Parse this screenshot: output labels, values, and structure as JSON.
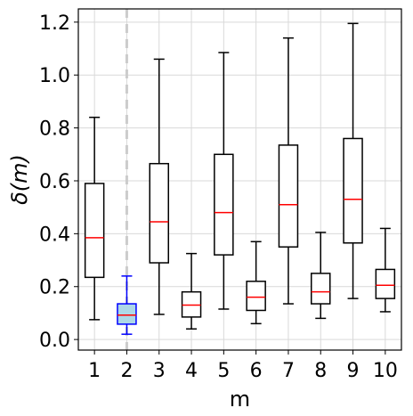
{
  "chart_data": {
    "type": "box",
    "xlabel": "m",
    "ylabel": "δ(m)",
    "categories": [
      "1",
      "2",
      "3",
      "4",
      "5",
      "6",
      "7",
      "8",
      "9",
      "10"
    ],
    "ylim": [
      -0.04,
      1.25
    ],
    "yticks": [
      "0.0",
      "0.2",
      "0.4",
      "0.6",
      "0.8",
      "1.0",
      "1.2"
    ],
    "grid": true,
    "highlight": {
      "category": "2",
      "box_fill": "#add8e6",
      "box_edge": "#0000ff",
      "vertical_dashed_line_color": "#cccccc"
    },
    "colors": {
      "box_edge": "#000000",
      "median": "#ff0000",
      "grid": "#d9d9d9"
    },
    "boxes": [
      {
        "category": "1",
        "whisker_low": 0.075,
        "q1": 0.235,
        "median": 0.385,
        "q3": 0.59,
        "whisker_high": 0.84
      },
      {
        "category": "2",
        "whisker_low": 0.02,
        "q1": 0.058,
        "median": 0.092,
        "q3": 0.135,
        "whisker_high": 0.24
      },
      {
        "category": "3",
        "whisker_low": 0.095,
        "q1": 0.29,
        "median": 0.445,
        "q3": 0.665,
        "whisker_high": 1.06
      },
      {
        "category": "4",
        "whisker_low": 0.04,
        "q1": 0.085,
        "median": 0.13,
        "q3": 0.18,
        "whisker_high": 0.325
      },
      {
        "category": "5",
        "whisker_low": 0.115,
        "q1": 0.32,
        "median": 0.48,
        "q3": 0.7,
        "whisker_high": 1.085
      },
      {
        "category": "6",
        "whisker_low": 0.06,
        "q1": 0.11,
        "median": 0.16,
        "q3": 0.22,
        "whisker_high": 0.37
      },
      {
        "category": "7",
        "whisker_low": 0.135,
        "q1": 0.35,
        "median": 0.51,
        "q3": 0.735,
        "whisker_high": 1.14
      },
      {
        "category": "8",
        "whisker_low": 0.08,
        "q1": 0.135,
        "median": 0.18,
        "q3": 0.25,
        "whisker_high": 0.405
      },
      {
        "category": "9",
        "whisker_low": 0.155,
        "q1": 0.365,
        "median": 0.53,
        "q3": 0.76,
        "whisker_high": 1.195
      },
      {
        "category": "10",
        "whisker_low": 0.105,
        "q1": 0.155,
        "median": 0.205,
        "q3": 0.265,
        "whisker_high": 0.42
      }
    ]
  }
}
